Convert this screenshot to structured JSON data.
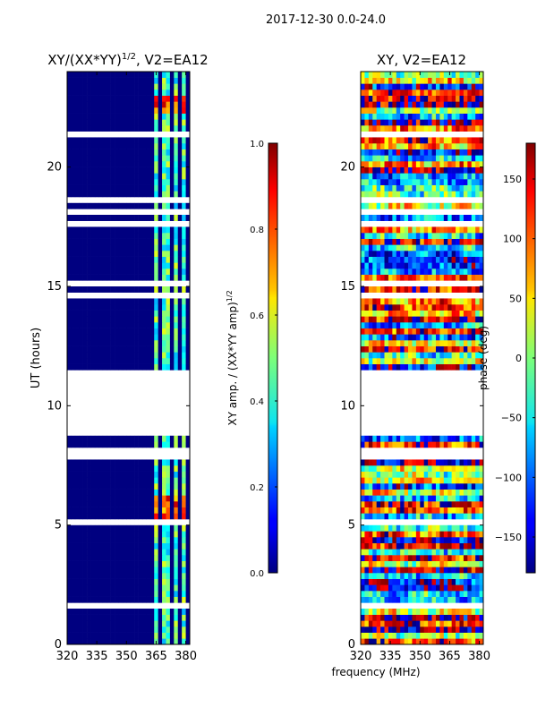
{
  "figure": {
    "suptitle": "2017-12-30 0.0-24.0",
    "shared_xlabel": "frequency (MHz)"
  },
  "chart_data": [
    {
      "type": "heatmap",
      "title": "XY/(XX*YY)",
      "title_superscript": "1/2",
      "title_suffix": ", V2=EA12",
      "xlabel": "",
      "ylabel": "UT (hours)",
      "xlim": [
        320,
        382
      ],
      "ylim": [
        0,
        24
      ],
      "xticks": [
        320,
        335,
        350,
        365,
        380
      ],
      "yticks": [
        0,
        5,
        10,
        15,
        20
      ],
      "colorbar": {
        "label": "XY amp. / (XX*YY amp)",
        "label_superscript": "1/2",
        "range": [
          0.0,
          1.0
        ],
        "ticks": [
          "0.0",
          "0.2",
          "0.4",
          "0.6",
          "0.8",
          "1.0"
        ],
        "tick_values": [
          0.0,
          0.2,
          0.4,
          0.6,
          0.8,
          1.0
        ],
        "colormap": "jet"
      },
      "active_channel_blocks_mhz": [
        [
          363.5,
          366
        ],
        [
          368.5,
          371
        ],
        [
          373.5,
          376
        ],
        [
          378,
          380.5
        ]
      ],
      "high_amplitude_hours": [
        [
          4.9,
          6.3
        ],
        [
          22.2,
          23.0
        ]
      ],
      "flagged_hours": [
        [
          8.8,
          11.5
        ],
        [
          21.0,
          21.1
        ],
        [
          15.9,
          16.0
        ]
      ]
    },
    {
      "type": "heatmap",
      "title": "XY, V2=EA12",
      "xlabel": "",
      "ylabel": "",
      "xlim": [
        320,
        382
      ],
      "ylim": [
        0,
        24
      ],
      "xticks": [
        320,
        335,
        350,
        365,
        380
      ],
      "yticks": [
        0,
        5,
        10,
        15,
        20
      ],
      "colorbar": {
        "label": "phase (deg)",
        "range": [
          -180,
          180
        ],
        "ticks": [
          "−150",
          "−100",
          "−50",
          "0",
          "50",
          "100",
          "150"
        ],
        "tick_values": [
          -150,
          -100,
          -50,
          0,
          50,
          100,
          150
        ],
        "colormap": "jet"
      },
      "flagged_hours": [
        [
          8.8,
          11.5
        ],
        [
          21.0,
          21.1
        ],
        [
          15.9,
          16.0
        ]
      ]
    }
  ],
  "colors": {
    "flag": "#ffffff",
    "axis": "#000000",
    "low": "#000080"
  }
}
